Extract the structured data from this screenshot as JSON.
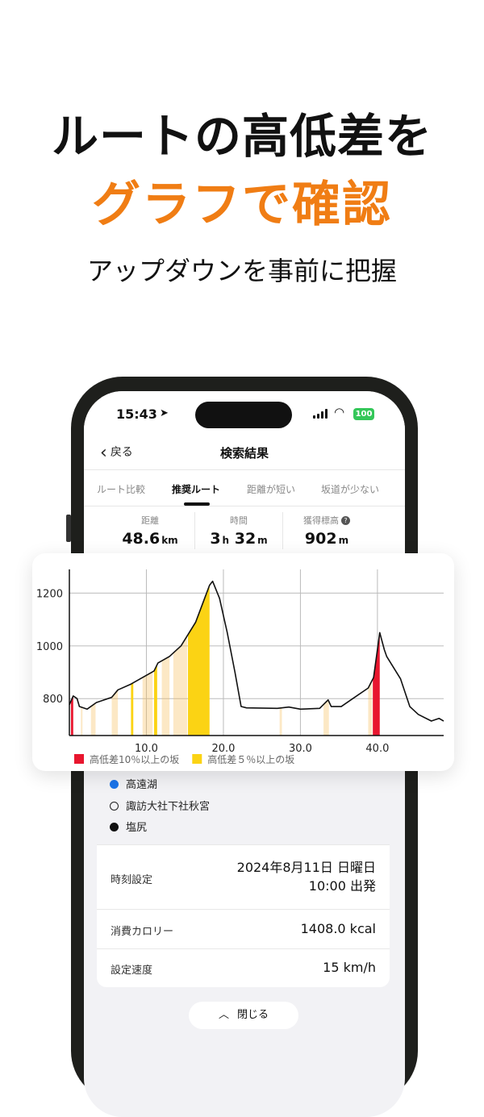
{
  "headline": {
    "line1": "ルートの高低差を",
    "line2": "グラフで確認",
    "subtitle": "アップダウンを事前に把握",
    "accent": "#f07d14"
  },
  "status_bar": {
    "time": "15:43",
    "battery": "100"
  },
  "nav": {
    "back_label": "戻る",
    "title": "検索結果"
  },
  "tabs": [
    {
      "label": "ルート比較"
    },
    {
      "label": "推奨ルート",
      "active": true
    },
    {
      "label": "距離が短い"
    },
    {
      "label": "坂道が少ない"
    }
  ],
  "stats": [
    {
      "label": "距離",
      "value": "48.6",
      "unit": "km"
    },
    {
      "label": "時間",
      "value": "3",
      "unit": "h",
      "value2": "32",
      "unit2": "m"
    },
    {
      "label": "獲得標高",
      "value": "902",
      "unit": "m"
    }
  ],
  "stops": [
    {
      "name": "高遠湖",
      "marker": "blue"
    },
    {
      "name": "諏訪大社下社秋宮",
      "marker": "hollow"
    },
    {
      "name": "塩尻",
      "marker": "black"
    }
  ],
  "details": [
    {
      "label": "時刻設定",
      "value": "2024年8月11日 日曜日",
      "value2": "10:00 出発"
    },
    {
      "label": "消費カロリー",
      "value": "1408.0 kcal"
    },
    {
      "label": "設定速度",
      "value": "15 km/h"
    }
  ],
  "close_label": "閉じる",
  "chart_data": {
    "type": "area",
    "x_ticks": [
      "10.0",
      "20.0",
      "30.0",
      "40.0"
    ],
    "y_ticks": [
      "800",
      "1000",
      "1200"
    ],
    "xlim": [
      0,
      48.6
    ],
    "ylim": [
      660,
      1290
    ],
    "grid": true,
    "x": [
      0,
      0.5,
      1.0,
      1.3,
      2.3,
      3.5,
      5.5,
      6.3,
      8.0,
      9.5,
      11.0,
      11.5,
      13.0,
      14.5,
      16.4,
      18.2,
      18.6,
      19.5,
      20.5,
      21.5,
      22.3,
      23,
      27,
      28.5,
      30,
      32.5,
      33.6,
      34,
      35.3,
      36.8,
      38.8,
      39.5,
      40.3,
      40.9,
      41.2,
      43.0,
      44.2,
      45.3,
      47.0,
      48.0,
      48.6
    ],
    "y": [
      777,
      810,
      800,
      770,
      760,
      785,
      805,
      833,
      855,
      880,
      905,
      935,
      960,
      1000,
      1090,
      1230,
      1245,
      1180,
      1050,
      900,
      770,
      765,
      763,
      768,
      760,
      763,
      795,
      770,
      770,
      800,
      840,
      880,
      1050,
      985,
      960,
      875,
      770,
      740,
      715,
      725,
      715
    ],
    "legend": [
      {
        "label": "高低差10％以上の坂",
        "color": "#e8162e"
      },
      {
        "label": "高低差５％以上の坂",
        "color": "#fbd314"
      }
    ],
    "slopes": [
      {
        "start": 0.2,
        "end": 0.5,
        "grade": "10%"
      },
      {
        "start": 39.4,
        "end": 40.3,
        "grade": "10%"
      },
      {
        "start": 15.4,
        "end": 18.2,
        "grade": "5%"
      },
      {
        "start": 11.0,
        "end": 11.4,
        "grade": "5%"
      },
      {
        "start": 8.0,
        "end": 8.3,
        "grade": "5%"
      },
      {
        "start": 38.8,
        "end": 39.3,
        "grade": "light"
      },
      {
        "start": 13.5,
        "end": 15.3,
        "grade": "light"
      },
      {
        "start": 5.5,
        "end": 6.3,
        "grade": "light"
      },
      {
        "start": 9.5,
        "end": 10.8,
        "grade": "light"
      },
      {
        "start": 33.0,
        "end": 33.7,
        "grade": "light"
      },
      {
        "start": 27.3,
        "end": 27.6,
        "grade": "light"
      },
      {
        "start": 1.5,
        "end": 1.7,
        "grade": "light"
      },
      {
        "start": 2.8,
        "end": 3.4,
        "grade": "light"
      },
      {
        "start": 12.0,
        "end": 13.0,
        "grade": "light"
      }
    ]
  }
}
